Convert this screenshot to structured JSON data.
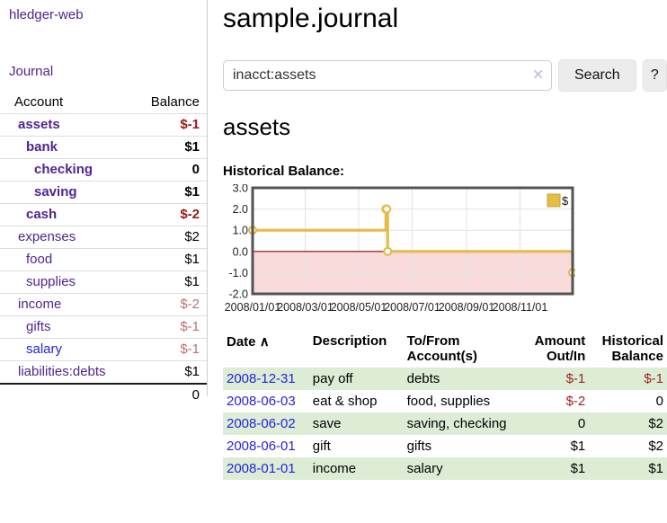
{
  "colors": {
    "link_purple": "#4f2490",
    "link_blue": "#2323dc",
    "negative_strong": "#9d1616",
    "negative_muted": "#bf6f6f",
    "negative_table": "#a12121",
    "row_stripe_green": "#ddedd5",
    "chart_line_gold": "#e3bc4a",
    "chart_marker_fill": "#ffffff",
    "chart_border": "#545454",
    "chart_grid": "#e2e2e2",
    "chart_zero_line": "#8b0000",
    "chart_negative_fill": "#fadbdb",
    "button_bg": "#ececec"
  },
  "sidebar": {
    "brand": "hledger-web",
    "nav_journal": "Journal",
    "accounts_header": {
      "account": "Account",
      "balance": "Balance"
    },
    "accounts": [
      {
        "name": "assets",
        "indent": 1,
        "bold": true,
        "link_color": "purple",
        "balance": "$-1",
        "balance_style": "neg-strong"
      },
      {
        "name": "bank",
        "indent": 2,
        "bold": true,
        "link_color": "purple",
        "balance": "$1",
        "balance_style": "pos"
      },
      {
        "name": "checking",
        "indent": 3,
        "bold": true,
        "link_color": "purple",
        "balance": "0",
        "balance_style": "pos"
      },
      {
        "name": "saving",
        "indent": 3,
        "bold": true,
        "link_color": "purple",
        "balance": "$1",
        "balance_style": "pos"
      },
      {
        "name": "cash",
        "indent": 2,
        "bold": true,
        "link_color": "purple",
        "balance": "$-2",
        "balance_style": "neg-strong"
      },
      {
        "name": "expenses",
        "indent": 1,
        "bold": false,
        "link_color": "purple",
        "balance": "$2",
        "balance_style": "pos"
      },
      {
        "name": "food",
        "indent": 2,
        "bold": false,
        "link_color": "purple",
        "balance": "$1",
        "balance_style": "pos"
      },
      {
        "name": "supplies",
        "indent": 2,
        "bold": false,
        "link_color": "purple",
        "balance": "$1",
        "balance_style": "pos"
      },
      {
        "name": "income",
        "indent": 1,
        "bold": false,
        "link_color": "purple",
        "balance": "$-2",
        "balance_style": "neg-muted"
      },
      {
        "name": "gifts",
        "indent": 2,
        "bold": false,
        "link_color": "purple",
        "balance": "$-1",
        "balance_style": "neg-muted"
      },
      {
        "name": "salary",
        "indent": 2,
        "bold": false,
        "link_color": "blue",
        "balance": "$-1",
        "balance_style": "neg-muted"
      },
      {
        "name": "liabilities:debts",
        "indent": 1,
        "bold": false,
        "link_color": "purple",
        "balance": "$1",
        "balance_style": "pos"
      }
    ],
    "total": "0"
  },
  "header": {
    "title": "sample.journal"
  },
  "search": {
    "value": "inacct:assets",
    "clear_icon": "✕",
    "button_label": "Search",
    "help_label": "?"
  },
  "account_page": {
    "title": "assets",
    "chart_label": "Historical Balance:"
  },
  "chart_data": {
    "type": "line",
    "step": true,
    "title": "Historical Balance",
    "series": [
      {
        "name": "$",
        "points": [
          [
            "2008-01-01",
            1
          ],
          [
            "2008-06-01",
            2
          ],
          [
            "2008-06-02",
            2
          ],
          [
            "2008-06-03",
            0
          ],
          [
            "2008-12-31",
            -1
          ]
        ]
      }
    ],
    "x_range": [
      "2008-01-01",
      "2008-12-31"
    ],
    "x_ticks": [
      "2008/01/01",
      "2008/03/01",
      "2008/05/01",
      "2008/07/01",
      "2008/09/01",
      "2008/11/01"
    ],
    "y_ticks": [
      3.0,
      2.0,
      1.0,
      0.0,
      -1.0,
      -2.0
    ],
    "ylim": [
      -2,
      3
    ],
    "grid": true,
    "legend_position": "top-right",
    "negative_region_shaded": true
  },
  "transactions": {
    "headers": {
      "date": "Date",
      "sort_icon": "∧",
      "description": "Description",
      "account": "To/From Account(s)",
      "amount": "Amount Out/In",
      "balance": "Historical Balance"
    },
    "rows": [
      {
        "date": "2008-12-31",
        "description": "pay off",
        "accounts": "debts",
        "amount": "$-1",
        "amount_neg": true,
        "balance": "$-1",
        "balance_neg": true
      },
      {
        "date": "2008-06-03",
        "description": "eat & shop",
        "accounts": "food, supplies",
        "amount": "$-2",
        "amount_neg": true,
        "balance": "0",
        "balance_neg": false
      },
      {
        "date": "2008-06-02",
        "description": "save",
        "accounts": "saving, checking",
        "amount": "0",
        "amount_neg": false,
        "balance": "$2",
        "balance_neg": false
      },
      {
        "date": "2008-06-01",
        "description": "gift",
        "accounts": "gifts",
        "amount": "$1",
        "amount_neg": false,
        "balance": "$2",
        "balance_neg": false
      },
      {
        "date": "2008-01-01",
        "description": "income",
        "accounts": "salary",
        "amount": "$1",
        "amount_neg": false,
        "balance": "$1",
        "balance_neg": false
      }
    ]
  }
}
